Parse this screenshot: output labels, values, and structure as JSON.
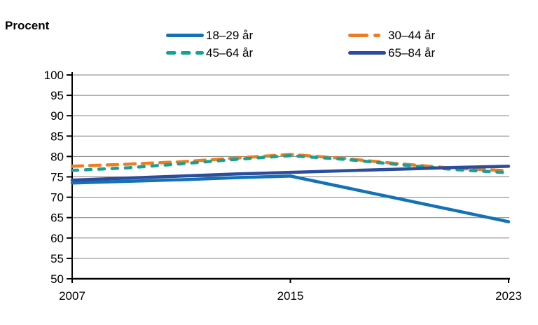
{
  "header": {
    "unit_label": "Procent"
  },
  "colors": {
    "grid": "#7F7F7F",
    "axis": "#000000",
    "text": "#000000",
    "background": "#FFFFFF"
  },
  "chart_data": {
    "type": "line",
    "title": "",
    "ylabel": "Procent",
    "xlabel": "",
    "grid": "horizontal",
    "legend_position": "top",
    "ylim": [
      50,
      100
    ],
    "yticks": [
      50,
      55,
      60,
      65,
      70,
      75,
      80,
      85,
      90,
      95,
      100
    ],
    "xticks": [
      2007,
      2015,
      2023
    ],
    "xtick_labels": [
      "2007",
      "2015",
      "2023"
    ],
    "x": [
      2007,
      2009,
      2011,
      2013,
      2015,
      2017,
      2019,
      2021,
      2023
    ],
    "series": [
      {
        "name": "18–29 år",
        "color": "#1372B6",
        "style": "solid",
        "values": [
          73.5,
          73.9,
          74.3,
          74.8,
          75.2,
          72.4,
          69.6,
          66.8,
          64.0
        ]
      },
      {
        "name": "30–44 år",
        "color": "#F07C20",
        "style": "dashed-long",
        "values": [
          77.6,
          78.1,
          78.7,
          79.6,
          80.5,
          79.5,
          78.2,
          77.1,
          76.5
        ]
      },
      {
        "name": "45–64 år",
        "color": "#16A193",
        "style": "dashed",
        "values": [
          76.6,
          77.2,
          78.2,
          79.3,
          80.2,
          79.3,
          78.0,
          76.8,
          76.0
        ]
      },
      {
        "name": "65–84 år",
        "color": "#2C4C9C",
        "style": "solid",
        "values": [
          74.2,
          74.7,
          75.2,
          75.7,
          76.1,
          76.5,
          76.9,
          77.3,
          77.6
        ]
      }
    ]
  }
}
